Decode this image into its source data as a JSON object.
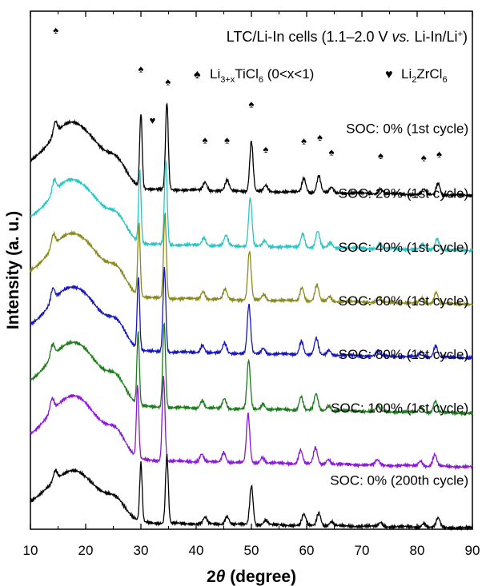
{
  "chart_data": {
    "type": "line",
    "title": "LTC/Li-In cells (1.1–2.0 V vs. Li-In/Li⁺)",
    "title_parts": {
      "pre": "LTC/Li-In cells (1.1–2.0 V ",
      "vs": "vs.",
      "post": " Li-In/Li",
      "sup": "+",
      "close": ")"
    },
    "xlabel": {
      "num": "2",
      "theta": "θ",
      "rest": " (degree)"
    },
    "ylabel": "Intensity (a. u.)",
    "xlim": [
      10,
      90
    ],
    "xticks": [
      10,
      20,
      30,
      40,
      50,
      60,
      70,
      80,
      90
    ],
    "ylim": [
      0,
      14
    ],
    "legend": {
      "spade_glyph": "♠",
      "spade_label": {
        "a": "Li",
        "sub1": "3+x",
        "b": "TiCl",
        "sub2": "6",
        "c": " (0<x<1)"
      },
      "heart_glyph": "♥",
      "heart_label": {
        "a": "Li",
        "sub1": "2",
        "b": "ZrCl",
        "sub2": "6"
      }
    },
    "peaks": [
      {
        "pos": 14.5,
        "h": 0.35,
        "w": 0.35
      },
      {
        "pos": 30.0,
        "h": 2.0,
        "w": 0.22
      },
      {
        "pos": 34.7,
        "h": 2.35,
        "w": 0.25
      },
      {
        "pos": 41.6,
        "h": 0.22,
        "w": 0.35
      },
      {
        "pos": 45.6,
        "h": 0.28,
        "w": 0.35
      },
      {
        "pos": 50.0,
        "h": 1.35,
        "w": 0.3
      },
      {
        "pos": 52.6,
        "h": 0.16,
        "w": 0.35
      },
      {
        "pos": 59.5,
        "h": 0.38,
        "w": 0.35
      },
      {
        "pos": 62.2,
        "h": 0.45,
        "w": 0.35
      },
      {
        "pos": 64.5,
        "h": 0.14,
        "w": 0.35
      },
      {
        "pos": 73.4,
        "h": 0.14,
        "w": 0.35
      },
      {
        "pos": 81.2,
        "h": 0.14,
        "w": 0.35
      },
      {
        "pos": 83.8,
        "h": 0.32,
        "w": 0.35
      }
    ],
    "markers": [
      {
        "type": "spade",
        "x": 14.6,
        "y": 13.4
      },
      {
        "type": "spade",
        "x": 30.0,
        "y": 12.35
      },
      {
        "type": "heart",
        "x": 32.1,
        "y": 10.95
      },
      {
        "type": "spade",
        "x": 34.9,
        "y": 12.0
      },
      {
        "type": "spade",
        "x": 41.6,
        "y": 10.42
      },
      {
        "type": "spade",
        "x": 45.6,
        "y": 10.42
      },
      {
        "type": "spade",
        "x": 50.0,
        "y": 11.4
      },
      {
        "type": "spade",
        "x": 52.6,
        "y": 10.18
      },
      {
        "type": "spade",
        "x": 59.5,
        "y": 10.4
      },
      {
        "type": "spade",
        "x": 62.4,
        "y": 10.5
      },
      {
        "type": "spade",
        "x": 64.5,
        "y": 10.1
      },
      {
        "type": "spade",
        "x": 73.4,
        "y": 10.0
      },
      {
        "type": "spade",
        "x": 81.2,
        "y": 9.95
      },
      {
        "type": "spade",
        "x": 84.0,
        "y": 10.05
      }
    ],
    "series": [
      {
        "name": "SOC: 0% (1st cycle)",
        "color": "#000000",
        "offset": 9.55,
        "shift": 0.0,
        "amp": 1.0,
        "label_x": 89.3,
        "label_y": 10.7
      },
      {
        "name": "SOC: 20% (1st cycle)",
        "color": "#2ec4c4",
        "offset": 8.05,
        "shift": -0.2,
        "amp": 0.97,
        "label_x": 89.3,
        "label_y": 8.95
      },
      {
        "name": "SOC: 40% (1st cycle)",
        "color": "#8a8a1c",
        "offset": 6.6,
        "shift": -0.35,
        "amp": 0.97,
        "label_x": 89.3,
        "label_y": 7.5
      },
      {
        "name": "SOC: 60% (1st cycle)",
        "color": "#1616c0",
        "offset": 5.15,
        "shift": -0.45,
        "amp": 0.97,
        "label_x": 89.3,
        "label_y": 6.05
      },
      {
        "name": "SOC: 80% (1st cycle)",
        "color": "#1c7c1c",
        "offset": 3.65,
        "shift": -0.5,
        "amp": 0.97,
        "label_x": 89.3,
        "label_y": 4.6
      },
      {
        "name": "SOC: 100% (1st cycle)",
        "color": "#8a18d8",
        "offset": 2.2,
        "shift": -0.6,
        "amp": 0.97,
        "label_x": 89.3,
        "label_y": 3.15
      },
      {
        "name": "SOC: 0% (200th cycle)",
        "color": "#000000",
        "offset": 0.45,
        "shift": 0.0,
        "amp": 0.78,
        "label_x": 89.3,
        "label_y": 1.2
      }
    ]
  }
}
